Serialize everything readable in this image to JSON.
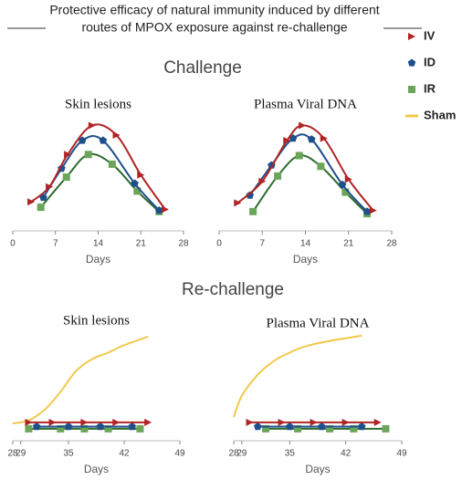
{
  "title_lines": [
    "Protective efficacy of natural immunity induced by different",
    "routes of MPOX exposure against re-challenge"
  ],
  "sections": [
    "Challenge",
    "Re-challenge"
  ],
  "chart_data": [
    {
      "type": "line",
      "title": "Skin lesions",
      "x_label": "Days",
      "xlim": [
        0,
        28
      ],
      "xticks": [
        0,
        7,
        14,
        21,
        28
      ],
      "ylim": [
        0,
        100
      ],
      "series": [
        {
          "color": "#b02424",
          "marker": "triangle",
          "x": [
            3,
            6,
            9,
            13,
            17,
            21,
            25
          ],
          "values": [
            21,
            35,
            65,
            92,
            83,
            46,
            14
          ]
        },
        {
          "color": "#1f4f8c",
          "marker": "pentagon",
          "x": [
            5,
            8,
            11.4,
            14.8,
            20,
            24
          ],
          "values": [
            25,
            52,
            78,
            78,
            38,
            13
          ]
        },
        {
          "color": "#2f6b2f",
          "marker_color": "#6aa55a",
          "marker": "square",
          "x": [
            4.6,
            8.8,
            12.4,
            16.3,
            20.4,
            24
          ],
          "values": [
            16,
            44,
            65,
            56,
            31,
            12
          ]
        }
      ]
    },
    {
      "type": "line",
      "title": "Plasma Viral DNA",
      "x_label": "Days",
      "xlim": [
        0,
        28
      ],
      "xticks": [
        0,
        7,
        14,
        21,
        28
      ],
      "ylim": [
        0,
        100
      ],
      "series": [
        {
          "color": "#b02424",
          "marker": "triangle",
          "x": [
            3,
            7,
            11,
            13.5,
            17,
            21,
            25
          ],
          "values": [
            20,
            40,
            78,
            92,
            80,
            42,
            13
          ]
        },
        {
          "color": "#1f4f8c",
          "marker": "pentagon",
          "x": [
            5,
            8.5,
            12,
            15,
            20,
            24
          ],
          "values": [
            27,
            55,
            80,
            79,
            37,
            12
          ]
        },
        {
          "color": "#2f6b2f",
          "marker_color": "#6aa55a",
          "marker": "square",
          "x": [
            5.5,
            9.5,
            13,
            16.5,
            20.5,
            24
          ],
          "values": [
            12,
            45,
            64,
            54,
            30,
            10
          ]
        }
      ]
    },
    {
      "type": "line",
      "title": "Skin lesions",
      "x_label": "Days",
      "xlim": [
        28,
        49
      ],
      "xticks": [
        28,
        29,
        35,
        42,
        49
      ],
      "ylim": [
        0,
        100
      ],
      "series": [
        {
          "name": "IV",
          "color": "#b02424",
          "marker": "triangle",
          "x": [
            30,
            33,
            37,
            41,
            45
          ],
          "values": [
            13,
            13,
            13,
            13,
            13
          ]
        },
        {
          "name": "ID",
          "color": "#1f4f8c",
          "marker": "pentagon",
          "x": [
            31,
            35,
            39,
            43
          ],
          "values": [
            9,
            9,
            9,
            9
          ]
        },
        {
          "name": "IR",
          "color": "#2f6b2f",
          "marker_color": "#6aa55a",
          "marker": "square",
          "x": [
            30,
            34,
            37,
            40,
            44
          ],
          "values": [
            7,
            7,
            7,
            7,
            7
          ]
        },
        {
          "name": "Sham",
          "color": "#f2c94c",
          "x": [
            28,
            30,
            32,
            34,
            36,
            38,
            40,
            42,
            45
          ],
          "values": [
            12,
            15,
            25,
            42,
            62,
            73,
            79,
            86,
            94
          ]
        }
      ]
    },
    {
      "type": "line",
      "title": "Plasma Viral DNA",
      "x_label": "Days",
      "xlim": [
        28,
        49
      ],
      "xticks": [
        28,
        29,
        35,
        42,
        49
      ],
      "ylim": [
        0,
        100
      ],
      "series": [
        {
          "color": "#b02424",
          "marker": "triangle",
          "x": [
            30,
            34,
            38,
            42,
            46
          ],
          "values": [
            13,
            13,
            13,
            13,
            13
          ]
        },
        {
          "color": "#1f4f8c",
          "marker": "pentagon",
          "x": [
            31,
            35,
            39,
            44
          ],
          "values": [
            9,
            9,
            9,
            9
          ]
        },
        {
          "color": "#2f6b2f",
          "marker_color": "#6aa55a",
          "marker": "square",
          "x": [
            32,
            36,
            40,
            43,
            47
          ],
          "values": [
            7,
            7,
            7,
            7,
            7
          ]
        },
        {
          "color": "#f2c94c",
          "x": [
            28,
            29,
            31,
            33,
            35,
            37,
            40,
            44
          ],
          "values": [
            18,
            38,
            58,
            71,
            79,
            85,
            90,
            95
          ]
        }
      ]
    }
  ]
}
